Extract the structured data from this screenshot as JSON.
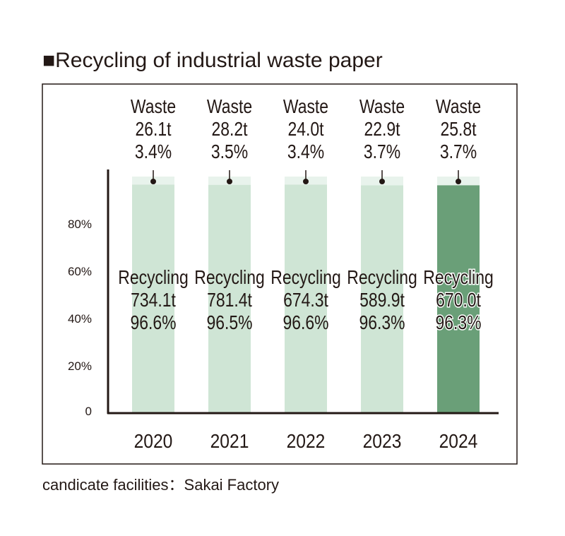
{
  "title": "■Recycling of industrial waste paper",
  "footnote": "candicate facilities：Sakai Factory",
  "colors": {
    "recycling": "#cfe5d5",
    "recycling_highlight": "#6a9f78",
    "waste": "#e8f3ec",
    "axis": "#231815",
    "frame": "#231815"
  },
  "chart_data": {
    "type": "bar",
    "stacked": true,
    "normalized": true,
    "categories": [
      "2020",
      "2021",
      "2022",
      "2023",
      "2024"
    ],
    "highlight_category": "2024",
    "y_ticks": [
      "0",
      "20%",
      "40%",
      "60%",
      "80%"
    ],
    "ylim": [
      0,
      100
    ],
    "series": [
      {
        "name": "Recycling",
        "tonnage": [
          "734.1t",
          "781.4t",
          "674.3t",
          "589.9t",
          "670.0t"
        ],
        "percent_labels": [
          "96.6%",
          "96.5%",
          "96.6%",
          "96.3%",
          "96.3%"
        ],
        "values": [
          96.6,
          96.5,
          96.6,
          96.3,
          96.3
        ]
      },
      {
        "name": "Waste",
        "tonnage": [
          "26.1t",
          "28.2t",
          "24.0t",
          "22.9t",
          "25.8t"
        ],
        "percent_labels": [
          "3.4%",
          "3.5%",
          "3.4%",
          "3.7%",
          "3.7%"
        ],
        "values": [
          3.4,
          3.5,
          3.4,
          3.7,
          3.7
        ]
      }
    ]
  }
}
